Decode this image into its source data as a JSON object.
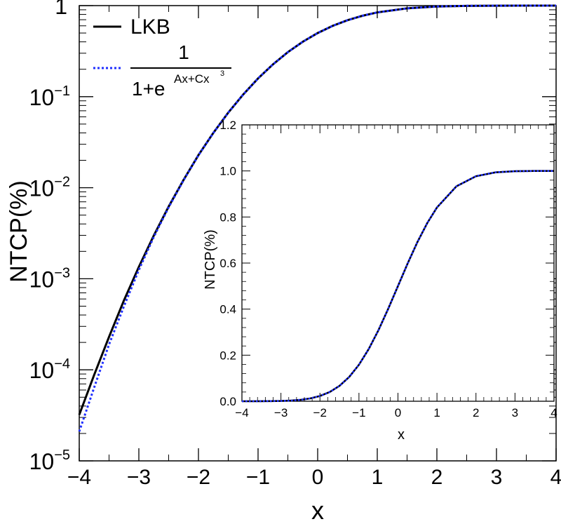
{
  "chart_data": [
    {
      "id": "main",
      "type": "line",
      "xlabel": "x",
      "ylabel": "NTCP(%)",
      "xlim": [
        -4,
        4
      ],
      "ylim": [
        1e-05,
        1
      ],
      "yscale": "log",
      "x_ticks": [
        "−4",
        "−3",
        "−2",
        "−1",
        "0",
        "1",
        "2",
        "3",
        "4"
      ],
      "y_ticks": [
        {
          "base": "10",
          "exp": "−5",
          "value": 1e-05
        },
        {
          "base": "10",
          "exp": "−4",
          "value": 0.0001
        },
        {
          "base": "10",
          "exp": "−3",
          "value": 0.001
        },
        {
          "base": "10",
          "exp": "−2",
          "value": 0.01
        },
        {
          "base": "10",
          "exp": "−1",
          "value": 0.1
        },
        {
          "base": "1",
          "exp": "",
          "value": 1
        }
      ],
      "legend": {
        "position": "top-left",
        "entries": [
          {
            "label": "LKB",
            "style": "solid",
            "color": "#000000"
          },
          {
            "label_num": "1",
            "label_den": "1+e",
            "label_sup": "Ax+Cx",
            "label_sup2": "3",
            "style": "dotted",
            "color": "#1f2fff"
          }
        ]
      },
      "series": [
        {
          "name": "LKB",
          "color": "#000000",
          "style": "solid",
          "x": [
            -4,
            -3.75,
            -3.5,
            -3.25,
            -3,
            -2.75,
            -2.5,
            -2.25,
            -2,
            -1.75,
            -1.5,
            -1.25,
            -1,
            -0.75,
            -0.5,
            -0.25,
            0,
            0.25,
            0.5,
            0.75,
            1,
            1.5,
            2,
            2.5,
            3,
            3.5,
            4
          ],
          "y": [
            3.2e-05,
            8.8e-05,
            0.00023,
            0.00058,
            0.00135,
            0.00298,
            0.0062,
            0.0122,
            0.0228,
            0.0401,
            0.0668,
            0.1056,
            0.1587,
            0.2266,
            0.3085,
            0.4013,
            0.5,
            0.5987,
            0.6915,
            0.7734,
            0.8413,
            0.9332,
            0.9772,
            0.9938,
            0.99865,
            0.99977,
            0.99997
          ]
        },
        {
          "name": "1/(1+e^(Ax+Cx^3))",
          "color": "#1f2fff",
          "style": "dotted",
          "x": [
            -4,
            -3.75,
            -3.5,
            -3.25,
            -3,
            -2.75,
            -2.5,
            -2.25,
            -2,
            -1.75,
            -1.5,
            -1.25,
            -1,
            -0.75,
            -0.5,
            -0.25,
            0,
            0.25,
            0.5,
            0.75,
            1,
            1.5,
            2,
            2.5,
            3,
            3.5,
            4
          ],
          "y": [
            2.1e-05,
            6.4e-05,
            0.00019,
            0.0005,
            0.00125,
            0.00288,
            0.0061,
            0.0121,
            0.0227,
            0.04,
            0.0667,
            0.1055,
            0.1586,
            0.2265,
            0.3085,
            0.4013,
            0.5,
            0.5987,
            0.6915,
            0.7735,
            0.8414,
            0.9333,
            0.9773,
            0.9939,
            0.99875,
            0.99981,
            0.99998
          ]
        }
      ]
    },
    {
      "id": "inset",
      "type": "line",
      "xlabel": "x",
      "ylabel": "NTCP(%)",
      "xlim": [
        -4,
        4
      ],
      "ylim": [
        0,
        1.2
      ],
      "x_ticks": [
        "−4",
        "−3",
        "−2",
        "−1",
        "0",
        "1",
        "2",
        "3",
        "4"
      ],
      "y_ticks": [
        "0.0",
        "0.2",
        "0.4",
        "0.6",
        "0.8",
        "1.0",
        "1.2"
      ]
    }
  ]
}
